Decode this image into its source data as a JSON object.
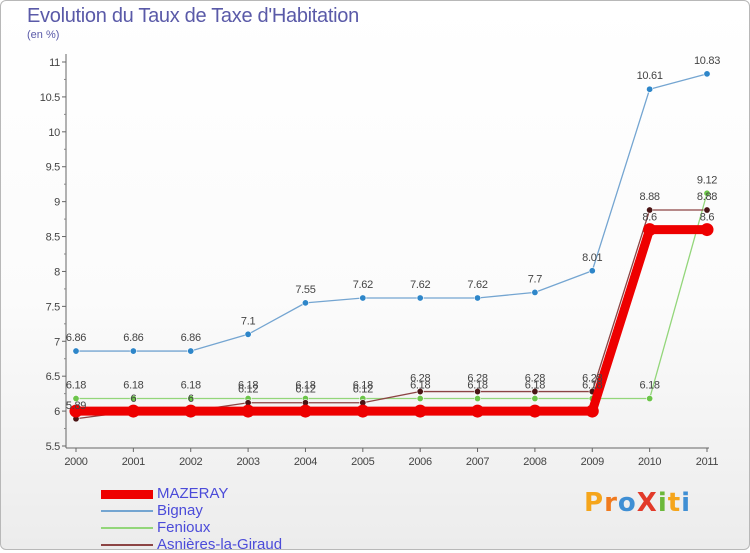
{
  "title": "Evolution du Taux de Taxe d'Habitation",
  "unit": "(en %)",
  "logo": {
    "text": "ProXiti",
    "letters": [
      {
        "ch": "P",
        "color": "#f5a51b"
      },
      {
        "ch": "r",
        "color": "#f07a1e"
      },
      {
        "ch": "o",
        "color": "#3f8fd4"
      },
      {
        "ch": "X",
        "color": "#e23a2a"
      },
      {
        "ch": "i",
        "color": "#6bb83a"
      },
      {
        "ch": "t",
        "color": "#f5a51b"
      },
      {
        "ch": "i",
        "color": "#3f8fd4"
      }
    ]
  },
  "chart_data": {
    "type": "line",
    "title": "Evolution du Taux de Taxe d'Habitation",
    "ylabel": "(en %)",
    "xlabel": "",
    "categories": [
      "2000",
      "2001",
      "2002",
      "2003",
      "2004",
      "2005",
      "2006",
      "2007",
      "2008",
      "2009",
      "2010",
      "2011"
    ],
    "ylim": [
      5.5,
      11
    ],
    "yticks": [
      "5.5",
      "6",
      "6.5",
      "7",
      "7.5",
      "8",
      "8.5",
      "9",
      "9.5",
      "10",
      "10.5",
      "11"
    ],
    "grid": false,
    "legend_position": "bottom-left",
    "series": [
      {
        "name": "MAZERAY",
        "color": "#ee0000",
        "point_color": "#ee0000",
        "values": [
          6.0,
          6.0,
          6.0,
          6.0,
          6.0,
          6.0,
          6.0,
          6.0,
          6.0,
          6.0,
          8.6,
          8.6
        ],
        "labels": [
          "",
          "6",
          "6",
          "",
          "",
          "",
          "",
          "",
          "",
          "",
          "8.6",
          "8.6"
        ]
      },
      {
        "name": "Bignay",
        "color": "#74a5d1",
        "point_color": "#2e86c9",
        "values": [
          6.86,
          6.86,
          6.86,
          7.1,
          7.55,
          7.62,
          7.62,
          7.62,
          7.7,
          8.01,
          10.61,
          10.83
        ],
        "labels": [
          "6.86",
          "6.86",
          "6.86",
          "7.1",
          "7.55",
          "7.62",
          "7.62",
          "7.62",
          "7.7",
          "8.01",
          "10.61",
          "10.83"
        ]
      },
      {
        "name": "Fenioux",
        "color": "#93d67a",
        "point_color": "#6cc44a",
        "values": [
          6.18,
          6.18,
          6.18,
          6.18,
          6.18,
          6.18,
          6.18,
          6.18,
          6.18,
          6.18,
          6.18,
          9.12
        ],
        "labels": [
          "6.18",
          "6.18",
          "6.18",
          "6.18",
          "6.18",
          "6.18",
          "6.18",
          "6.18",
          "6.18",
          "6.18",
          "6.18",
          "9.12"
        ]
      },
      {
        "name": "Asnières-la-Giraud",
        "color": "#8c4444",
        "point_color": "#4a1414",
        "values": [
          5.89,
          6.0,
          6.0,
          6.12,
          6.12,
          6.12,
          6.28,
          6.28,
          6.28,
          6.28,
          8.88,
          8.88
        ],
        "labels": [
          "5.89",
          "",
          "",
          "6.12",
          "6.12",
          "6.12",
          "6.28",
          "6.28",
          "6.28",
          "6.28",
          "8.88",
          "8.88"
        ]
      }
    ]
  }
}
